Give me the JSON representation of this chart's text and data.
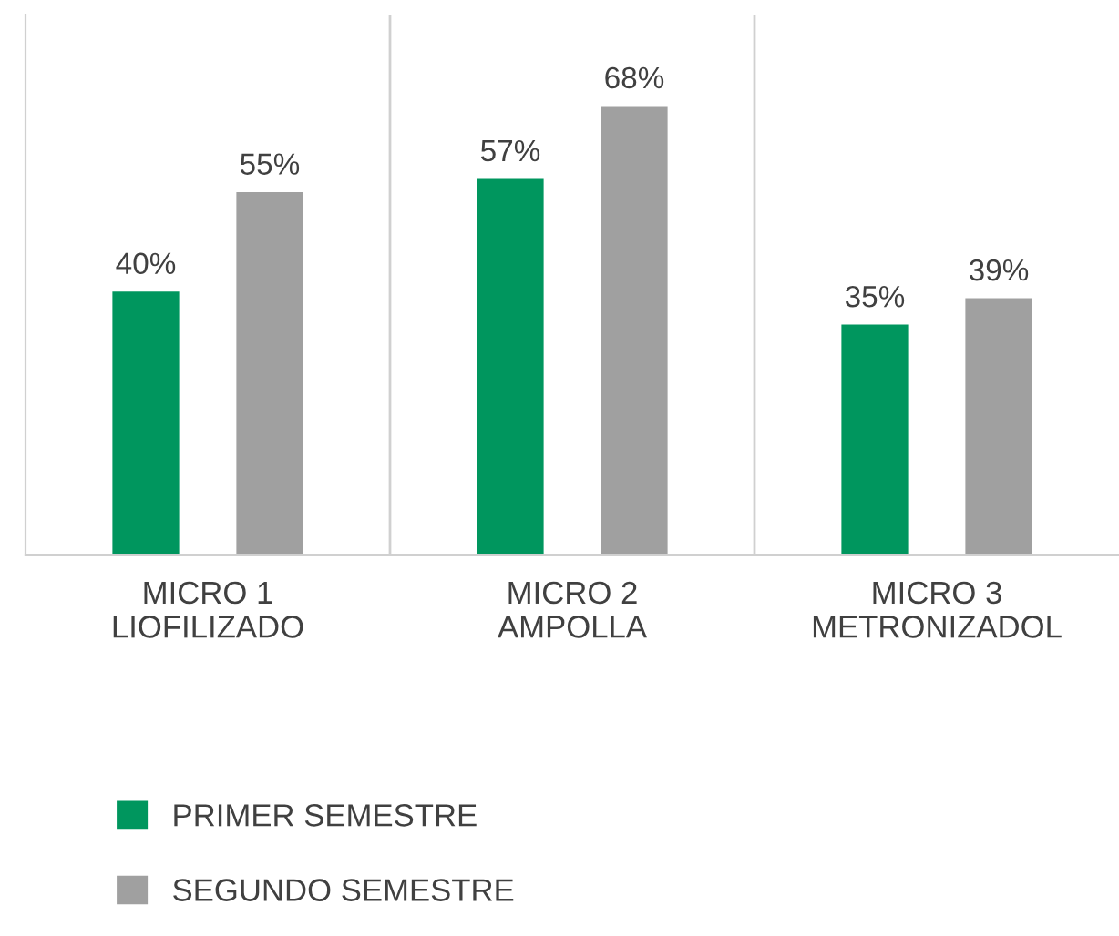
{
  "chart_data": {
    "type": "bar",
    "categories": [
      "MICRO 1\nLIOFILIZADO",
      "MICRO 2\nAMPOLLA",
      "MICRO 3\nMETRONIZADOL"
    ],
    "series": [
      {
        "name": "PRIMER SEMESTRE",
        "color": "#00965e",
        "values": [
          40,
          57,
          35
        ],
        "value_labels": [
          "40%",
          "57%",
          "35%"
        ]
      },
      {
        "name": "SEGUNDO SEMESTRE",
        "color": "#a0a0a0",
        "values": [
          55,
          68,
          39
        ],
        "value_labels": [
          "55%",
          "68%",
          "39%"
        ]
      }
    ],
    "legend": "bottom left",
    "grid": false
  }
}
